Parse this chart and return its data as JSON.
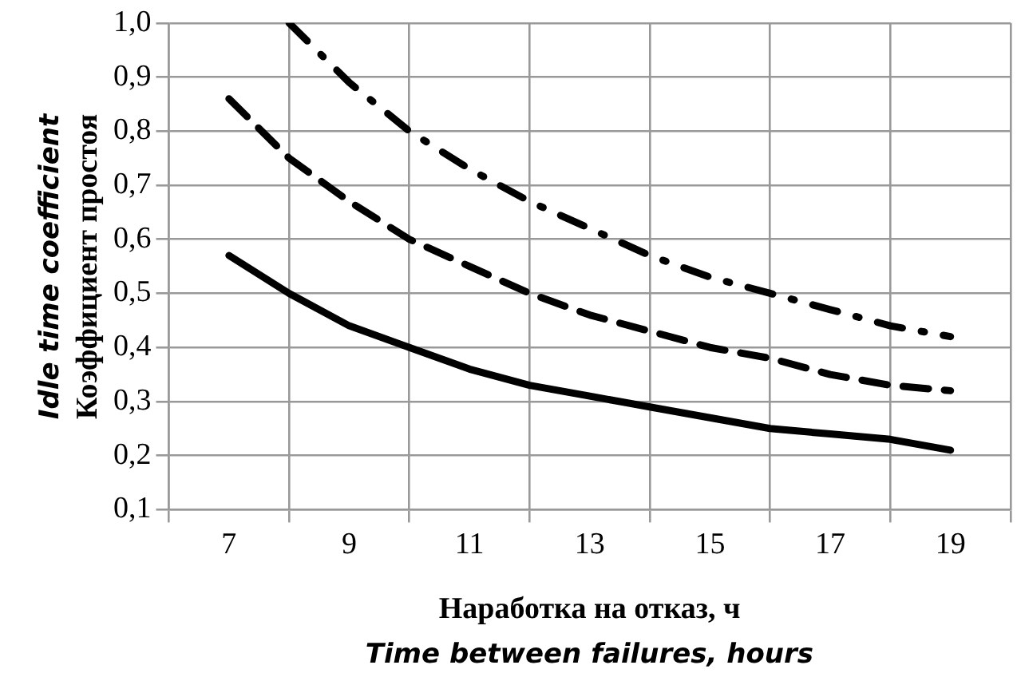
{
  "chart_data": {
    "type": "line",
    "ylabel": "Коэффициент простоя\nIdle time coefficient",
    "xlabel": "Наработка на отказ, ч\nTime between failures, hours",
    "x": [
      7,
      8,
      9,
      10,
      11,
      12,
      13,
      14,
      15,
      16,
      17,
      18,
      19
    ],
    "series": [
      {
        "color": "#000000",
        "line_style": "solid",
        "values": [
          0.57,
          0.5,
          0.44,
          0.4,
          0.36,
          0.33,
          0.31,
          0.29,
          0.27,
          0.25,
          0.24,
          0.23,
          0.21
        ]
      },
      {
        "color": "#000000",
        "line_style": "dashed",
        "values": [
          0.86,
          0.75,
          0.67,
          0.6,
          0.55,
          0.5,
          0.46,
          0.43,
          0.4,
          0.38,
          0.35,
          0.33,
          0.32
        ]
      },
      {
        "color": "#000000",
        "line_style": "dashdot",
        "values": [
          null,
          1.0,
          0.89,
          0.8,
          0.73,
          0.67,
          0.62,
          0.57,
          0.53,
          0.5,
          0.47,
          0.44,
          0.42
        ]
      }
    ],
    "xlim": [
      6,
      20
    ],
    "xticks": [
      {
        "value": 6,
        "label": null
      },
      7,
      {
        "value": 8,
        "label": null
      },
      9,
      {
        "value": 10,
        "label": null
      },
      11,
      {
        "value": 12,
        "label": null
      },
      13,
      {
        "value": 14,
        "label": null
      },
      15,
      {
        "value": 16,
        "label": null
      },
      17,
      {
        "value": 18,
        "label": null
      },
      19,
      {
        "value": 20,
        "label": null
      }
    ],
    "ylim": [
      0.1,
      1.0
    ],
    "yticks": [
      {
        "value": 0.1,
        "label": "0,1"
      },
      {
        "value": 0.2,
        "label": "0,2"
      },
      {
        "value": 0.3,
        "label": "0,3"
      },
      {
        "value": 0.4,
        "label": "0,4"
      },
      {
        "value": 0.5,
        "label": "0,5"
      },
      {
        "value": 0.6,
        "label": "0,6"
      },
      {
        "value": 0.7,
        "label": "0,7"
      },
      {
        "value": 0.8,
        "label": "0,8"
      },
      {
        "value": 0.9,
        "label": "0,9"
      },
      {
        "value": 1.0,
        "label": "1,0"
      }
    ],
    "grid": true,
    "legend": false,
    "marker": "none"
  }
}
